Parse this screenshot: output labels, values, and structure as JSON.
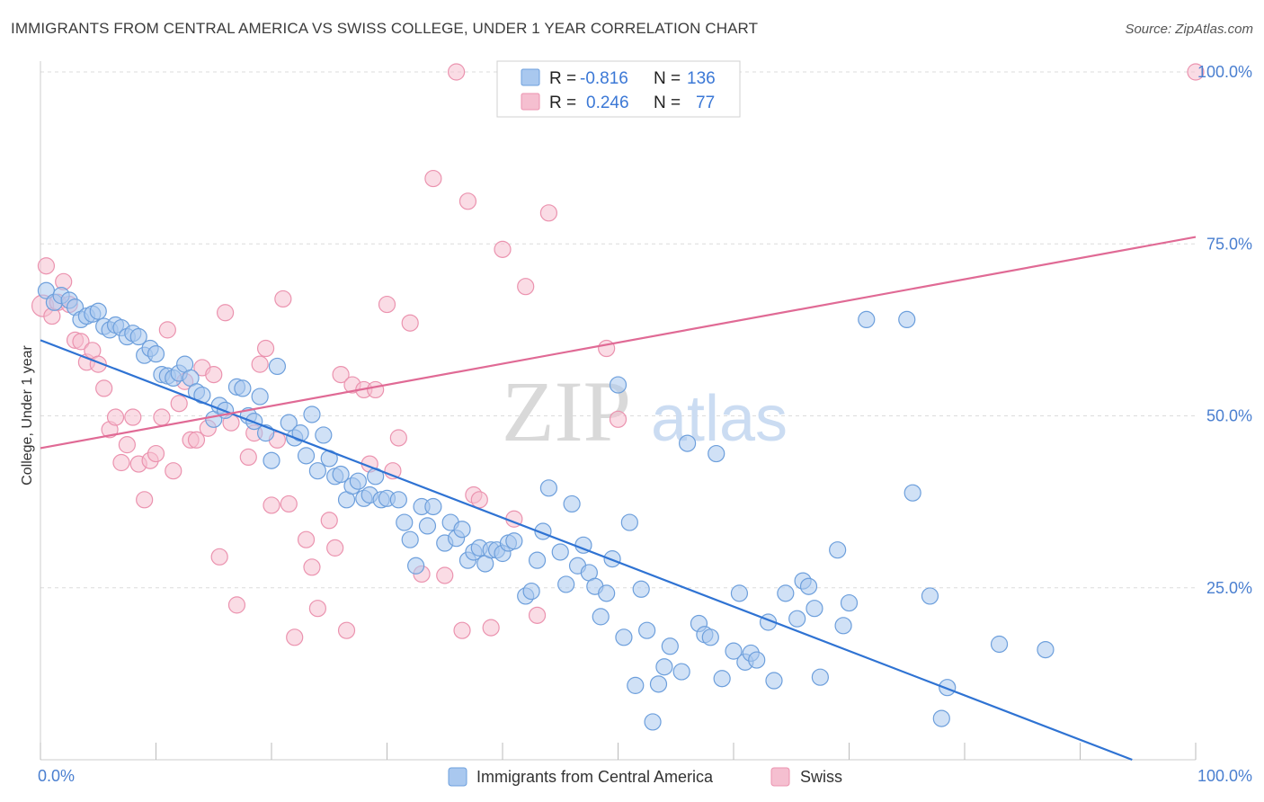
{
  "title": "IMMIGRANTS FROM CENTRAL AMERICA VS SWISS COLLEGE, UNDER 1 YEAR CORRELATION CHART",
  "source": "Source: ZipAtlas.com",
  "watermark": {
    "zip": "ZIP",
    "atlas": "atlas"
  },
  "colors": {
    "blue_fill": "#a9c8ef",
    "blue_stroke": "#6d9fdc",
    "blue_line": "#2f73d3",
    "pink_fill": "#f5bfd0",
    "pink_stroke": "#eb93af",
    "pink_line": "#e06a95",
    "tick_text": "#4a7fd0",
    "grid": "#dcdcdc"
  },
  "legend": {
    "r_label": "R =",
    "n_label": "N =",
    "rows": [
      {
        "r": "-0.816",
        "n": "136",
        "series": "blue"
      },
      {
        "r": "0.246",
        "n": "77",
        "series": "pink"
      }
    ]
  },
  "bottom_legend": [
    "Immigrants from Central America",
    "Swiss"
  ],
  "chart_data": {
    "type": "scatter",
    "title": "IMMIGRANTS FROM CENTRAL AMERICA VS SWISS COLLEGE, UNDER 1 YEAR CORRELATION CHART",
    "xlabel": "",
    "ylabel": "College, Under 1 year",
    "xlim": [
      0,
      100
    ],
    "ylim": [
      0,
      100
    ],
    "x_tick_labels": [
      "0.0%",
      "100.0%"
    ],
    "y_tick_labels": [
      {
        "value": 100,
        "label": "100.0%"
      },
      {
        "value": 75,
        "label": "75.0%"
      },
      {
        "value": 50,
        "label": "50.0%"
      },
      {
        "value": 25,
        "label": "25.0%"
      }
    ],
    "grid": true,
    "legend_position": "top-center",
    "series": [
      {
        "name": "Immigrants from Central America",
        "color": "#6d9fdc",
        "R": -0.816,
        "N": 136,
        "trend": {
          "x": [
            0,
            94.5
          ],
          "y": [
            61,
            0
          ]
        },
        "points": [
          [
            0.5,
            68.2
          ],
          [
            1.2,
            66.5
          ],
          [
            1.8,
            67.5
          ],
          [
            2.5,
            66.8
          ],
          [
            3,
            65.8
          ],
          [
            3.5,
            64
          ],
          [
            4,
            64.5
          ],
          [
            4.5,
            64.8
          ],
          [
            5,
            65.2
          ],
          [
            5.5,
            63
          ],
          [
            6,
            62.5
          ],
          [
            6.5,
            63.2
          ],
          [
            7,
            62.8
          ],
          [
            7.5,
            61.5
          ],
          [
            8,
            62
          ],
          [
            8.5,
            61.5
          ],
          [
            9,
            58.8
          ],
          [
            9.5,
            59.8
          ],
          [
            10,
            59
          ],
          [
            10.5,
            56
          ],
          [
            11,
            55.8
          ],
          [
            11.5,
            55.5
          ],
          [
            12,
            56.2
          ],
          [
            12.5,
            57.5
          ],
          [
            13,
            55.5
          ],
          [
            13.5,
            53.5
          ],
          [
            14,
            53
          ],
          [
            15,
            49.5
          ],
          [
            15.5,
            51.5
          ],
          [
            16,
            50.8
          ],
          [
            17,
            54.2
          ],
          [
            17.5,
            54
          ],
          [
            18,
            50
          ],
          [
            18.5,
            49.2
          ],
          [
            19,
            52.8
          ],
          [
            19.5,
            47.5
          ],
          [
            20,
            43.5
          ],
          [
            20.5,
            57.2
          ],
          [
            21.5,
            49
          ],
          [
            22,
            46.8
          ],
          [
            22.5,
            47.5
          ],
          [
            23,
            44.2
          ],
          [
            23.5,
            50.2
          ],
          [
            24,
            42
          ],
          [
            24.5,
            47.2
          ],
          [
            25,
            43.8
          ],
          [
            25.5,
            41.2
          ],
          [
            26,
            41.5
          ],
          [
            26.5,
            37.8
          ],
          [
            27,
            39.8
          ],
          [
            27.5,
            40.5
          ],
          [
            28,
            38
          ],
          [
            28.5,
            38.5
          ],
          [
            29,
            41.2
          ],
          [
            29.5,
            37.8
          ],
          [
            30,
            38
          ],
          [
            31,
            37.8
          ],
          [
            31.5,
            34.5
          ],
          [
            32,
            32
          ],
          [
            32.5,
            28.2
          ],
          [
            33,
            36.8
          ],
          [
            33.5,
            34
          ],
          [
            34,
            36.8
          ],
          [
            35,
            31.5
          ],
          [
            35.5,
            34.5
          ],
          [
            36,
            32.2
          ],
          [
            36.5,
            33.5
          ],
          [
            37,
            29
          ],
          [
            37.5,
            30.2
          ],
          [
            38,
            30.8
          ],
          [
            38.5,
            28.5
          ],
          [
            39,
            30.5
          ],
          [
            39.5,
            30.5
          ],
          [
            40,
            30
          ],
          [
            40.5,
            31.5
          ],
          [
            41,
            31.8
          ],
          [
            42,
            23.8
          ],
          [
            42.5,
            24.5
          ],
          [
            43,
            29
          ],
          [
            43.5,
            33.2
          ],
          [
            44,
            39.5
          ],
          [
            45,
            30.2
          ],
          [
            45.5,
            25.5
          ],
          [
            46,
            37.2
          ],
          [
            46.5,
            28.2
          ],
          [
            47,
            31.2
          ],
          [
            47.5,
            27.2
          ],
          [
            48,
            25.2
          ],
          [
            48.5,
            20.8
          ],
          [
            49,
            24.2
          ],
          [
            49.5,
            29.2
          ],
          [
            50,
            54.5
          ],
          [
            50.5,
            17.8
          ],
          [
            51,
            34.5
          ],
          [
            51.5,
            10.8
          ],
          [
            52,
            24.8
          ],
          [
            52.5,
            18.8
          ],
          [
            53,
            5.5
          ],
          [
            53.5,
            11
          ],
          [
            54,
            13.5
          ],
          [
            54.5,
            16.5
          ],
          [
            55.5,
            12.8
          ],
          [
            56,
            46
          ],
          [
            57,
            19.8
          ],
          [
            57.5,
            18.2
          ],
          [
            58,
            17.8
          ],
          [
            58.5,
            44.5
          ],
          [
            59,
            11.8
          ],
          [
            60,
            15.8
          ],
          [
            60.5,
            24.2
          ],
          [
            61,
            14.2
          ],
          [
            61.5,
            15.5
          ],
          [
            62,
            14.5
          ],
          [
            63,
            20
          ],
          [
            63.5,
            11.5
          ],
          [
            64.5,
            24.2
          ],
          [
            65.5,
            20.5
          ],
          [
            66,
            26
          ],
          [
            66.5,
            25.2
          ],
          [
            67,
            22
          ],
          [
            67.5,
            12
          ],
          [
            69,
            30.5
          ],
          [
            69.5,
            19.5
          ],
          [
            70,
            22.8
          ],
          [
            71.5,
            64
          ],
          [
            75,
            64
          ],
          [
            75.5,
            38.8
          ],
          [
            77,
            23.8
          ],
          [
            78,
            6
          ],
          [
            78.5,
            10.5
          ],
          [
            83,
            16.8
          ],
          [
            87,
            16
          ]
        ]
      },
      {
        "name": "Swiss",
        "color": "#eb93af",
        "R": 0.246,
        "N": 77,
        "trend": {
          "x": [
            0,
            100
          ],
          "y": [
            45.3,
            76
          ]
        },
        "points": [
          [
            0.2,
            66
          ],
          [
            0.5,
            71.8
          ],
          [
            1,
            64.5
          ],
          [
            1.5,
            66.5
          ],
          [
            2,
            69.5
          ],
          [
            2.5,
            66.2
          ],
          [
            3,
            61
          ],
          [
            3.5,
            60.8
          ],
          [
            4,
            57.8
          ],
          [
            4.5,
            59.5
          ],
          [
            5,
            57.5
          ],
          [
            5.5,
            54
          ],
          [
            6,
            48
          ],
          [
            6.5,
            49.8
          ],
          [
            7,
            43.2
          ],
          [
            7.5,
            45.8
          ],
          [
            8,
            49.8
          ],
          [
            8.5,
            43
          ],
          [
            9,
            37.8
          ],
          [
            9.5,
            43.5
          ],
          [
            10,
            44.5
          ],
          [
            10.5,
            49.8
          ],
          [
            11,
            62.5
          ],
          [
            11.5,
            42
          ],
          [
            12,
            51.8
          ],
          [
            12.5,
            55
          ],
          [
            13,
            46.5
          ],
          [
            13.5,
            46.5
          ],
          [
            14,
            57
          ],
          [
            14.5,
            48.2
          ],
          [
            15,
            56
          ],
          [
            15.5,
            29.5
          ],
          [
            16,
            65
          ],
          [
            16.5,
            49
          ],
          [
            17,
            22.5
          ],
          [
            18,
            44
          ],
          [
            18.5,
            47.5
          ],
          [
            19,
            57.5
          ],
          [
            19.5,
            59.8
          ],
          [
            20,
            37
          ],
          [
            20.5,
            46.5
          ],
          [
            21,
            67
          ],
          [
            21.5,
            37.2
          ],
          [
            22,
            17.8
          ],
          [
            23,
            32
          ],
          [
            23.5,
            28
          ],
          [
            24,
            22
          ],
          [
            25,
            34.8
          ],
          [
            25.5,
            30.8
          ],
          [
            26,
            56
          ],
          [
            26.5,
            18.8
          ],
          [
            27,
            54.5
          ],
          [
            28,
            53.8
          ],
          [
            28.5,
            43
          ],
          [
            29,
            53.8
          ],
          [
            30,
            66.2
          ],
          [
            30.5,
            42
          ],
          [
            31,
            46.8
          ],
          [
            32,
            63.5
          ],
          [
            33,
            27
          ],
          [
            34,
            84.5
          ],
          [
            35,
            26.8
          ],
          [
            36,
            100
          ],
          [
            36.5,
            18.8
          ],
          [
            37,
            81.2
          ],
          [
            37.5,
            38.5
          ],
          [
            38,
            37.8
          ],
          [
            39,
            19.2
          ],
          [
            40,
            74.2
          ],
          [
            41,
            35
          ],
          [
            42,
            68.8
          ],
          [
            43,
            21
          ],
          [
            44,
            79.5
          ],
          [
            49,
            59.8
          ],
          [
            50,
            49.5
          ],
          [
            100,
            100
          ]
        ]
      }
    ]
  }
}
